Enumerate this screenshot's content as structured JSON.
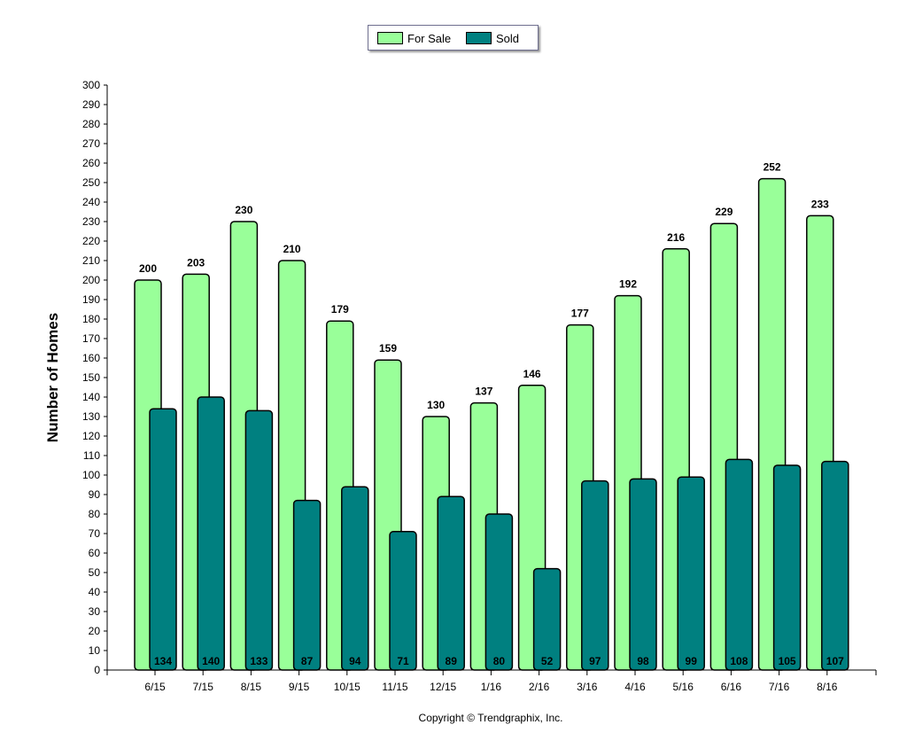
{
  "colors": {
    "for_sale": "#99ff99",
    "sold": "#008080",
    "outline": "#000000"
  },
  "legend": {
    "for_sale_label": "For Sale",
    "sold_label": "Sold",
    "placement": "top-center"
  },
  "copyright": "Copyright © Trendgraphix, Inc.",
  "chart_data": {
    "type": "bar",
    "title": "",
    "xlabel": "",
    "ylabel": "Number of Homes",
    "ylim": [
      0,
      300
    ],
    "ytick_step": 10,
    "grid": false,
    "categories": [
      "6/15",
      "7/15",
      "8/15",
      "9/15",
      "10/15",
      "11/15",
      "12/15",
      "1/16",
      "2/16",
      "3/16",
      "4/16",
      "5/16",
      "6/16",
      "7/16",
      "8/16"
    ],
    "series": [
      {
        "name": "For Sale",
        "values": [
          200,
          203,
          230,
          210,
          179,
          159,
          130,
          137,
          146,
          177,
          192,
          216,
          229,
          252,
          233
        ]
      },
      {
        "name": "Sold",
        "values": [
          134,
          140,
          133,
          87,
          94,
          71,
          89,
          80,
          52,
          97,
          98,
          99,
          108,
          105,
          107
        ]
      }
    ]
  }
}
